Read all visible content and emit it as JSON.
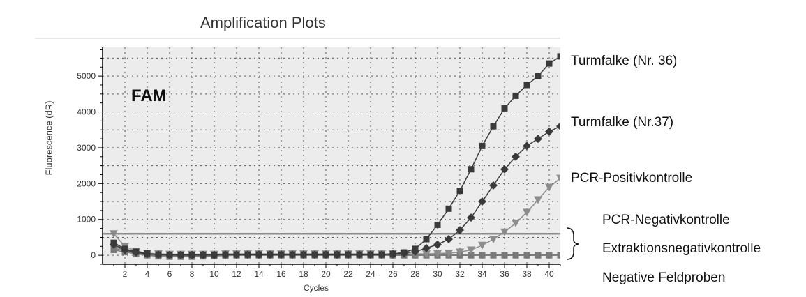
{
  "chart_data": {
    "type": "line",
    "title": "Amplification Plots",
    "panel_label": "FAM",
    "xlabel": "Cycles",
    "ylabel": "Fluorescence (dR)",
    "xlim": [
      0,
      41
    ],
    "ylim": [
      -250,
      5800
    ],
    "x_ticks": [
      2,
      4,
      6,
      8,
      10,
      12,
      14,
      16,
      18,
      20,
      22,
      24,
      26,
      28,
      30,
      32,
      34,
      36,
      38,
      40
    ],
    "x_tick_labels": [
      "2",
      "4",
      "6",
      "8",
      "10",
      "12",
      "14",
      "16",
      "18",
      "20",
      "22",
      "24",
      "26",
      "28",
      "30",
      "32",
      "34",
      "36",
      "38",
      "40"
    ],
    "y_ticks": [
      0,
      1000,
      2000,
      3000,
      4000,
      5000
    ],
    "y_tick_labels": [
      "0",
      "1000",
      "2000",
      "3000",
      "4000",
      "5000"
    ],
    "grid": true,
    "threshold": 600,
    "colors": {
      "series1": "#3a3a3a",
      "series2": "#3a3a3a",
      "series3": "#8c8c8c",
      "baseline": "#7a7a7a",
      "threshold": "#8c8c8c"
    },
    "series": [
      {
        "name": "Turmfalke (Nr. 36)",
        "marker": "square",
        "x": [
          1,
          2,
          3,
          4,
          5,
          6,
          7,
          8,
          9,
          10,
          11,
          12,
          13,
          14,
          15,
          16,
          17,
          18,
          19,
          20,
          21,
          22,
          23,
          24,
          25,
          26,
          27,
          28,
          29,
          30,
          31,
          32,
          33,
          34,
          35,
          36,
          37,
          38,
          39,
          40,
          41
        ],
        "values": [
          350,
          180,
          100,
          50,
          20,
          10,
          10,
          10,
          10,
          10,
          20,
          20,
          20,
          20,
          20,
          20,
          20,
          20,
          20,
          20,
          20,
          20,
          20,
          20,
          20,
          40,
          80,
          180,
          450,
          850,
          1300,
          1800,
          2400,
          3050,
          3600,
          4100,
          4450,
          4750,
          5000,
          5350,
          5550
        ]
      },
      {
        "name": "Turmfalke (Nr.37)",
        "marker": "diamond",
        "x": [
          1,
          2,
          3,
          4,
          5,
          6,
          7,
          8,
          9,
          10,
          11,
          12,
          13,
          14,
          15,
          16,
          17,
          18,
          19,
          20,
          21,
          22,
          23,
          24,
          25,
          26,
          27,
          28,
          29,
          30,
          31,
          32,
          33,
          34,
          35,
          36,
          37,
          38,
          39,
          40,
          41
        ],
        "values": [
          300,
          150,
          80,
          40,
          20,
          10,
          10,
          10,
          10,
          10,
          20,
          20,
          20,
          20,
          20,
          20,
          20,
          20,
          20,
          20,
          20,
          20,
          20,
          20,
          20,
          30,
          60,
          100,
          200,
          300,
          450,
          700,
          1050,
          1500,
          1950,
          2400,
          2750,
          3050,
          3250,
          3450,
          3600
        ]
      },
      {
        "name": "PCR-Positivkontrolle",
        "marker": "triangle-down",
        "x": [
          1,
          2,
          3,
          4,
          5,
          6,
          7,
          8,
          9,
          10,
          11,
          12,
          13,
          14,
          15,
          16,
          17,
          18,
          19,
          20,
          21,
          22,
          23,
          24,
          25,
          26,
          27,
          28,
          29,
          30,
          31,
          32,
          33,
          34,
          35,
          36,
          37,
          38,
          39,
          40,
          41
        ],
        "values": [
          600,
          250,
          120,
          60,
          40,
          30,
          30,
          30,
          30,
          30,
          40,
          40,
          40,
          40,
          40,
          40,
          40,
          40,
          40,
          40,
          40,
          40,
          40,
          40,
          40,
          40,
          40,
          40,
          40,
          50,
          60,
          90,
          150,
          280,
          450,
          650,
          900,
          1200,
          1550,
          1900,
          2150
        ]
      },
      {
        "name": "PCR-Negativkontrolle",
        "marker": "square",
        "x": [
          1,
          2,
          3,
          4,
          5,
          6,
          7,
          8,
          9,
          10,
          11,
          12,
          13,
          14,
          15,
          16,
          17,
          18,
          19,
          20,
          21,
          22,
          23,
          24,
          25,
          26,
          27,
          28,
          29,
          30,
          31,
          32,
          33,
          34,
          35,
          36,
          37,
          38,
          39,
          40,
          41
        ],
        "values": [
          200,
          120,
          60,
          20,
          0,
          -10,
          -10,
          -10,
          -10,
          -10,
          0,
          0,
          0,
          0,
          0,
          0,
          0,
          0,
          0,
          0,
          0,
          0,
          0,
          0,
          0,
          0,
          0,
          0,
          0,
          0,
          0,
          0,
          0,
          0,
          0,
          0,
          0,
          0,
          0,
          0,
          0
        ]
      },
      {
        "name": "Extraktionsnegativkontrolle",
        "marker": "square",
        "x": [
          1,
          2,
          3,
          4,
          5,
          6,
          7,
          8,
          9,
          10,
          11,
          12,
          13,
          14,
          15,
          16,
          17,
          18,
          19,
          20,
          21,
          22,
          23,
          24,
          25,
          26,
          27,
          28,
          29,
          30,
          31,
          32,
          33,
          34,
          35,
          36,
          37,
          38,
          39,
          40,
          41
        ],
        "values": [
          250,
          140,
          70,
          30,
          10,
          0,
          -20,
          -20,
          -20,
          -10,
          0,
          0,
          10,
          10,
          10,
          10,
          10,
          10,
          10,
          10,
          10,
          10,
          10,
          10,
          10,
          10,
          10,
          10,
          10,
          10,
          10,
          10,
          10,
          10,
          10,
          10,
          10,
          10,
          10,
          10,
          10
        ]
      },
      {
        "name": "Negative Feldproben",
        "marker": "square",
        "x": [
          1,
          2,
          3,
          4,
          5,
          6,
          7,
          8,
          9,
          10,
          11,
          12,
          13,
          14,
          15,
          16,
          17,
          18,
          19,
          20,
          21,
          22,
          23,
          24,
          25,
          26,
          27,
          28,
          29,
          30,
          31,
          32,
          33,
          34,
          35,
          36,
          37,
          38,
          39,
          40,
          41
        ],
        "values": [
          150,
          90,
          40,
          0,
          -30,
          -40,
          -40,
          -40,
          -30,
          -20,
          -10,
          0,
          0,
          0,
          0,
          0,
          0,
          0,
          0,
          0,
          0,
          0,
          0,
          0,
          0,
          0,
          0,
          0,
          0,
          0,
          0,
          0,
          0,
          0,
          0,
          0,
          0,
          0,
          0,
          0,
          0
        ]
      }
    ],
    "annotations": [
      "Turmfalke (Nr. 36)",
      "Turmfalke (Nr.37)",
      "PCR-Positivkontrolle",
      "PCR-Negativkontrolle",
      "Extraktionsnegativkontrolle",
      "Negative Feldproben"
    ]
  }
}
